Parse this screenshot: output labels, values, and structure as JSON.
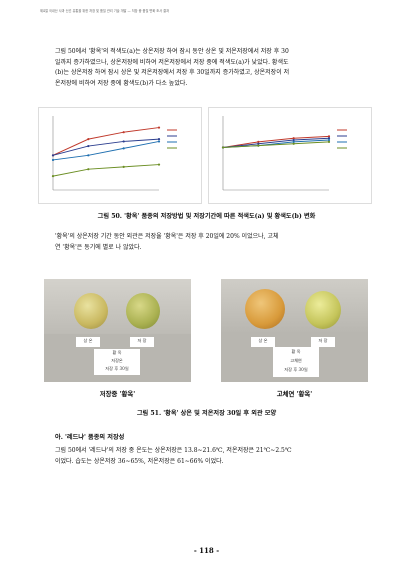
{
  "header": "제4절 국내산 사과 신선 유통을 위한 저장 및 품질 관리 기술 개발 — 저장 중 품질 변화 조사 결과",
  "para1": [
    "그림 50에서 '황옥'의 적색도(a)는 상온저장 하여 잠시 동안 상온 및 저온저장에서 저장 후 30",
    "일까지 증가하였으나, 상온저장에 비하여 저온저장에서 저장 중에 적색도(a)가 낮았다. 황색도",
    "(b)는 상온저장 하여 잠시 상온 및 저온저장에서 저장 후 30일까지 증가하였고, 상온저장이 저",
    "온저장에 비하여 저장 중에 황색도(b)가 다소 높았다."
  ],
  "figure50_caption": "그림 50. '황옥' 품종의 저장방법 및 저장기간에 따른 적색도(a) 및 황색도(b) 변화",
  "para2": [
    "'황옥'의 상온저장 기간 동안 외관은 저장율 '황옥'은 저장 후 20일에 20% 이었으나, 고체",
    "연 '황옥'은 동기에 별로 나 않았다."
  ],
  "photo_labels": {
    "left": {
      "tag_top": [
        "상 온",
        "저 장"
      ],
      "card": [
        "황 옥",
        "저장온",
        "저장 후 30일"
      ]
    },
    "right": {
      "tag_top": [
        "상 온",
        "저 장"
      ],
      "card": [
        "황 옥",
        "고체연",
        "저장 후 30일"
      ]
    }
  },
  "photo_captions": {
    "left": "저장중 '황옥'",
    "right": "고체연 '황옥'"
  },
  "figure51_caption": "그림 51. '황옥' 상온 및 저온저장 30일 후 외관 모양",
  "section_heading": "아. '레드냐' 품종의 저장성",
  "para3": [
    "그림 50에서 '레드냐'의 저장 중 온도는 상온저장은 13.8~21.6℃, 저온저장은 21℃~2.5℃",
    "이었다. 습도는 상온저장 36~65%, 저온저장은 61~66% 이었다."
  ],
  "page_number": "- 118 -",
  "chart_data": [
    {
      "type": "line",
      "title": "",
      "x": [
        0,
        10,
        20,
        30
      ],
      "ylim": [
        -6,
        10
      ],
      "legend": "right",
      "series": [
        {
          "color": "#c0392b",
          "values": [
            1.5,
            5.0,
            6.5,
            7.5
          ]
        },
        {
          "color": "#2c3e8f",
          "values": [
            1.5,
            3.5,
            4.5,
            5.0
          ]
        },
        {
          "color": "#1f6fb0",
          "values": [
            0.5,
            1.5,
            3.0,
            4.5
          ]
        },
        {
          "color": "#6b8e23",
          "values": [
            -3.0,
            -1.5,
            -1.0,
            -0.5
          ]
        }
      ]
    },
    {
      "type": "line",
      "title": "",
      "x": [
        0,
        10,
        20,
        30
      ],
      "ylim": [
        20,
        60
      ],
      "legend": "right",
      "series": [
        {
          "color": "#c0392b",
          "values": [
            43,
            46,
            48,
            49
          ]
        },
        {
          "color": "#2c3e8f",
          "values": [
            43,
            45,
            47,
            48
          ]
        },
        {
          "color": "#1f6fb0",
          "values": [
            43,
            44,
            46,
            47
          ]
        },
        {
          "color": "#6b8e23",
          "values": [
            43,
            44,
            45,
            46
          ]
        }
      ]
    }
  ]
}
